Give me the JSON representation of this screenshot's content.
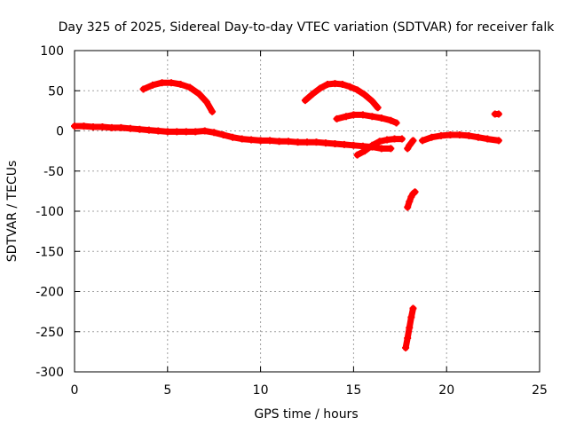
{
  "chart_data": {
    "type": "scatter",
    "title": "Day 325 of 2025, Sidereal Day-to-day VTEC variation (SDTVAR) for receiver falk",
    "xlabel": "GPS time / hours",
    "ylabel": "SDTVAR / TECUs",
    "xlim": [
      0,
      25
    ],
    "ylim": [
      -300,
      100
    ],
    "xticks": [
      0,
      5,
      10,
      15,
      20,
      25
    ],
    "yticks": [
      -300,
      -250,
      -200,
      -150,
      -100,
      -50,
      0,
      50,
      100
    ],
    "grid": true,
    "series": [
      {
        "name": "SDTVAR",
        "color": "#ff0000",
        "marker": "+",
        "segments": [
          [
            [
              0,
              6
            ],
            [
              0.5,
              6
            ],
            [
              1,
              5
            ],
            [
              1.5,
              5
            ],
            [
              2,
              4
            ],
            [
              2.5,
              4
            ],
            [
              3,
              3
            ],
            [
              3.5,
              2
            ],
            [
              4,
              1
            ],
            [
              4.5,
              0
            ],
            [
              5,
              -1
            ],
            [
              5.5,
              -1
            ],
            [
              6,
              -1
            ],
            [
              6.5,
              -1
            ],
            [
              7,
              0
            ],
            [
              7.5,
              -2
            ],
            [
              8,
              -5
            ],
            [
              8.5,
              -8
            ],
            [
              9,
              -10
            ],
            [
              9.5,
              -11
            ],
            [
              10,
              -12
            ],
            [
              10.5,
              -12
            ],
            [
              11,
              -13
            ],
            [
              11.5,
              -13
            ],
            [
              12,
              -14
            ],
            [
              12.5,
              -14
            ],
            [
              13,
              -14
            ],
            [
              13.5,
              -15
            ],
            [
              14,
              -16
            ],
            [
              14.5,
              -17
            ],
            [
              15,
              -18
            ],
            [
              15.5,
              -19
            ],
            [
              16,
              -20
            ],
            [
              16.5,
              -22
            ],
            [
              17,
              -22
            ]
          ],
          [
            [
              3.7,
              52
            ],
            [
              4.2,
              57
            ],
            [
              4.7,
              60
            ],
            [
              5.2,
              60
            ],
            [
              5.7,
              58
            ],
            [
              6.2,
              54
            ],
            [
              6.7,
              46
            ],
            [
              7.1,
              36
            ],
            [
              7.4,
              24
            ]
          ],
          [
            [
              12.4,
              38
            ],
            [
              12.8,
              46
            ],
            [
              13.2,
              53
            ],
            [
              13.6,
              58
            ],
            [
              14,
              59
            ],
            [
              14.4,
              58
            ],
            [
              14.8,
              55
            ],
            [
              15.2,
              51
            ],
            [
              15.6,
              45
            ],
            [
              16,
              37
            ],
            [
              16.3,
              29
            ]
          ],
          [
            [
              14.1,
              15
            ],
            [
              14.6,
              18
            ],
            [
              15,
              20
            ],
            [
              15.5,
              20
            ],
            [
              16,
              18
            ],
            [
              16.5,
              16
            ],
            [
              17,
              13
            ],
            [
              17.3,
              10
            ]
          ],
          [
            [
              15.2,
              -30
            ],
            [
              15.6,
              -25
            ],
            [
              16,
              -18
            ],
            [
              16.4,
              -13
            ],
            [
              16.8,
              -11
            ],
            [
              17.2,
              -10
            ],
            [
              17.6,
              -10
            ]
          ],
          [
            [
              17.9,
              -22
            ],
            [
              18,
              -18
            ],
            [
              18.2,
              -12
            ]
          ],
          [
            [
              17.9,
              -95
            ],
            [
              18,
              -88
            ],
            [
              18.1,
              -82
            ],
            [
              18.2,
              -78
            ],
            [
              18.3,
              -76
            ]
          ],
          [
            [
              17.8,
              -270
            ],
            [
              17.9,
              -258
            ],
            [
              18,
              -245
            ],
            [
              18.1,
              -232
            ],
            [
              18.2,
              -221
            ]
          ],
          [
            [
              18.7,
              -12
            ],
            [
              19.2,
              -8
            ],
            [
              19.7,
              -6
            ],
            [
              20.2,
              -5
            ],
            [
              20.7,
              -5
            ],
            [
              21.2,
              -6
            ],
            [
              21.7,
              -8
            ],
            [
              22.2,
              -10
            ],
            [
              22.8,
              -12
            ]
          ],
          [
            [
              22.6,
              21
            ],
            [
              22.8,
              21
            ]
          ]
        ]
      }
    ]
  }
}
